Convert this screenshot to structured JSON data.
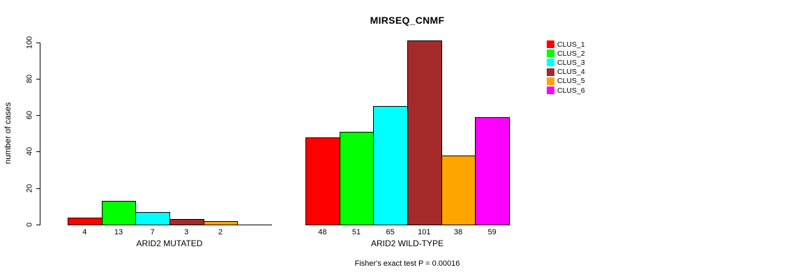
{
  "chart_data": {
    "type": "bar",
    "title": "MIRSEQ_CNMF",
    "ylabel": "number of cases",
    "ylim": [
      0,
      100
    ],
    "yticks": [
      0,
      20,
      40,
      60,
      80,
      100
    ],
    "grid": false,
    "legend_position": "right",
    "categories": [
      "CLUS_1",
      "CLUS_2",
      "CLUS_3",
      "CLUS_4",
      "CLUS_5",
      "CLUS_6"
    ],
    "colors": [
      "#FF0000",
      "#00FF00",
      "#00FFFF",
      "#A52A2A",
      "#FFA500",
      "#FF00FF"
    ],
    "groups": [
      {
        "label": "ARID2 MUTATED",
        "values": [
          4,
          13,
          7,
          3,
          2,
          0
        ],
        "bar_labels": [
          "4",
          "13",
          "7",
          "3",
          "2",
          ""
        ]
      },
      {
        "label": "ARID2 WILD-TYPE",
        "values": [
          48,
          51,
          65,
          101,
          38,
          59
        ],
        "bar_labels": [
          "48",
          "51",
          "65",
          "101",
          "38",
          "59"
        ]
      }
    ],
    "annotation": "Fisher's exact test P = 0.00016"
  }
}
